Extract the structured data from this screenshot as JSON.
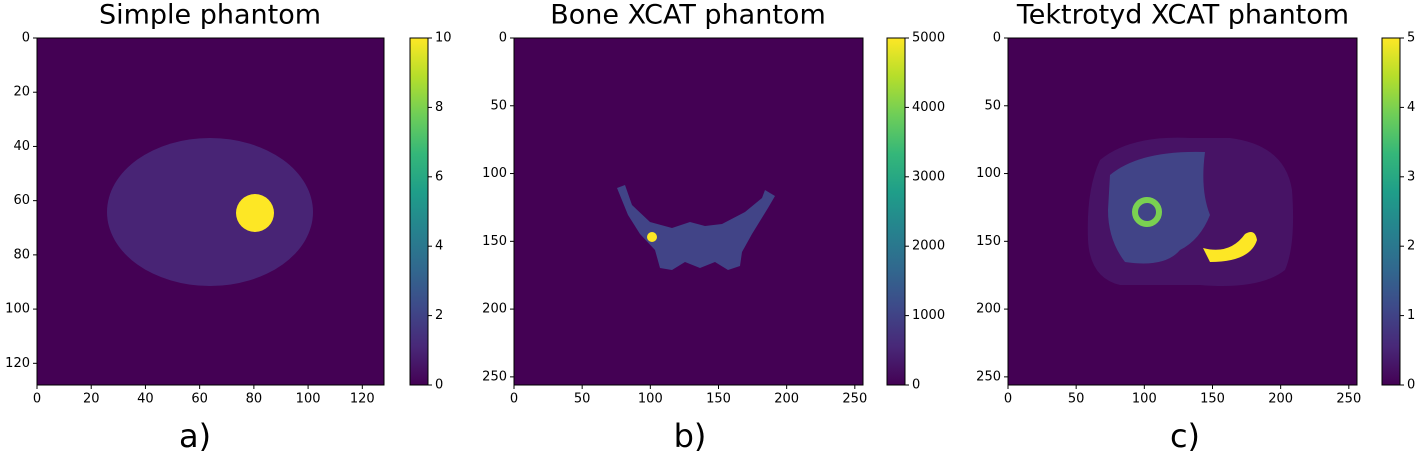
{
  "chart_data": [
    {
      "type": "image",
      "title": "Simple phantom",
      "caption": "a)",
      "xlim": [
        0,
        128
      ],
      "ylim": [
        0,
        128
      ],
      "invert_y": true,
      "xticks": [
        0,
        20,
        40,
        60,
        80,
        100,
        120
      ],
      "yticks": [
        0,
        20,
        40,
        60,
        80,
        100,
        120
      ],
      "clim": [
        0,
        10
      ],
      "cticks": [
        0,
        2,
        4,
        6,
        8,
        10
      ],
      "colormap": [
        "#440154",
        "#482878",
        "#3e4989",
        "#31688e",
        "#26828e",
        "#1f9e89",
        "#35b779",
        "#6ece58",
        "#b5de2b",
        "#fde725"
      ]
    },
    {
      "type": "image",
      "title": "Bone XCAT phantom",
      "caption": "b)",
      "xlim": [
        0,
        256
      ],
      "ylim": [
        0,
        256
      ],
      "invert_y": true,
      "xticks": [
        0,
        50,
        100,
        150,
        200,
        250
      ],
      "yticks": [
        0,
        50,
        100,
        150,
        200,
        250
      ],
      "clim": [
        0,
        5000
      ],
      "cticks": [
        0,
        1000,
        2000,
        3000,
        4000,
        5000
      ],
      "colormap": [
        "#440154",
        "#482878",
        "#3e4989",
        "#31688e",
        "#26828e",
        "#1f9e89",
        "#35b779",
        "#6ece58",
        "#b5de2b",
        "#fde725"
      ]
    },
    {
      "type": "image",
      "title": "Tektrotyd XCAT phantom",
      "caption": "c)",
      "xlim": [
        0,
        256
      ],
      "ylim": [
        0,
        256
      ],
      "invert_y": true,
      "xticks": [
        0,
        50,
        100,
        150,
        200,
        250
      ],
      "yticks": [
        0,
        50,
        100,
        150,
        200,
        250
      ],
      "clim": [
        0,
        5
      ],
      "cticks": [
        0,
        1,
        2,
        3,
        4,
        5
      ],
      "colormap": [
        "#440154",
        "#482878",
        "#3e4989",
        "#31688e",
        "#26828e",
        "#1f9e89",
        "#35b779",
        "#6ece58",
        "#b5de2b",
        "#fde725"
      ]
    }
  ]
}
